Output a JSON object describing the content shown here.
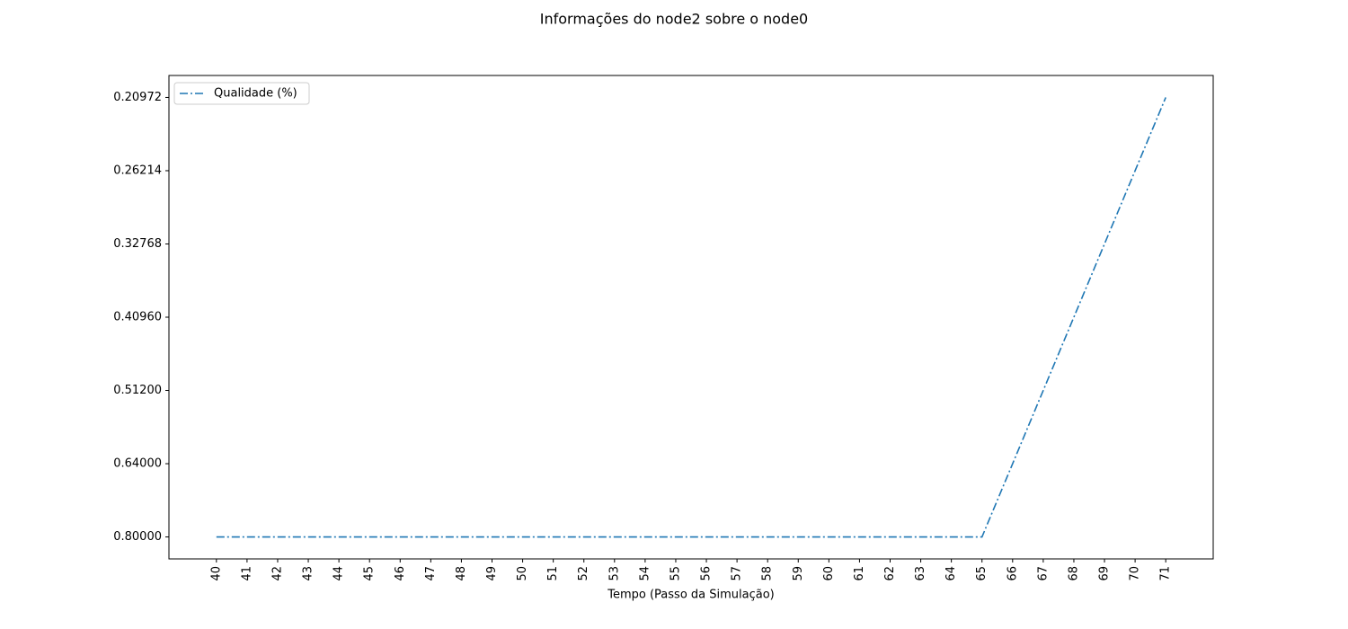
{
  "chart_data": {
    "type": "line",
    "title": "Informações do node2 sobre o node0",
    "xlabel": "Tempo (Passo da Simulação)",
    "x": [
      40,
      41,
      42,
      43,
      44,
      45,
      46,
      47,
      48,
      49,
      50,
      51,
      52,
      53,
      54,
      55,
      56,
      57,
      58,
      59,
      60,
      61,
      62,
      63,
      64,
      65,
      66,
      67,
      68,
      69,
      70,
      71
    ],
    "xlim": [
      38.45,
      72.55
    ],
    "xticks": [
      40,
      41,
      42,
      43,
      44,
      45,
      46,
      47,
      48,
      49,
      50,
      51,
      52,
      53,
      54,
      55,
      56,
      57,
      58,
      59,
      60,
      61,
      62,
      63,
      64,
      65,
      66,
      67,
      68,
      69,
      70,
      71
    ],
    "ycategories": [
      "0.80000",
      "0.64000",
      "0.51200",
      "0.40960",
      "0.32768",
      "0.26214",
      "0.20972"
    ],
    "series": [
      {
        "name": "Qualidade (%)",
        "color": "#1f77b4",
        "values": [
          "0.80000",
          "0.80000",
          "0.80000",
          "0.80000",
          "0.80000",
          "0.80000",
          "0.80000",
          "0.80000",
          "0.80000",
          "0.80000",
          "0.80000",
          "0.80000",
          "0.80000",
          "0.80000",
          "0.80000",
          "0.80000",
          "0.80000",
          "0.80000",
          "0.80000",
          "0.80000",
          "0.80000",
          "0.80000",
          "0.80000",
          "0.80000",
          "0.80000",
          "0.80000",
          "0.64000",
          "0.51200",
          "0.40960",
          "0.32768",
          "0.26214",
          "0.20972"
        ]
      }
    ],
    "legend": "upper left"
  }
}
